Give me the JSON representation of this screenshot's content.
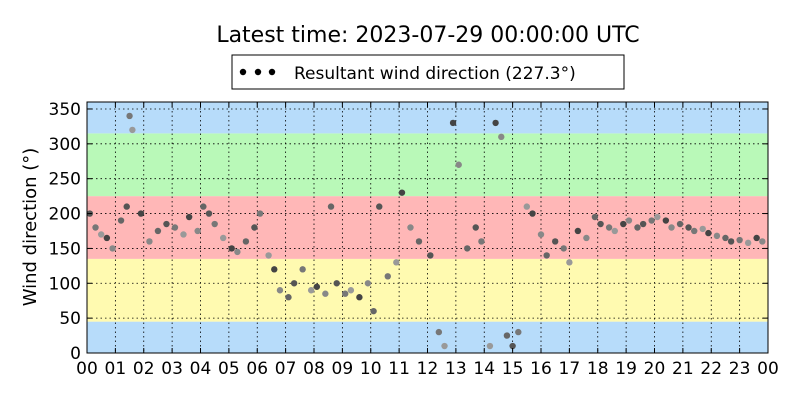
{
  "chart_data": {
    "type": "scatter",
    "title": "Latest time: 2023-07-29 00:00:00 UTC",
    "xlabel": "",
    "ylabel": "Wind direction (°)",
    "xlim": [
      0,
      24
    ],
    "ylim": [
      0,
      360
    ],
    "x_tick_labels": [
      "00",
      "01",
      "02",
      "03",
      "04",
      "05",
      "06",
      "07",
      "08",
      "09",
      "10",
      "11",
      "12",
      "13",
      "14",
      "15",
      "16",
      "17",
      "18",
      "19",
      "20",
      "21",
      "22",
      "23",
      "00"
    ],
    "y_ticks": [
      0,
      50,
      100,
      150,
      200,
      250,
      300,
      350
    ],
    "grid": true,
    "legend": {
      "placement": "top-center",
      "entries": [
        "Resultant wind direction (227.3°)"
      ]
    },
    "background_bands": [
      {
        "from": 0,
        "to": 45,
        "color": "#b7dcfa"
      },
      {
        "from": 45,
        "to": 135,
        "color": "#fffab0"
      },
      {
        "from": 135,
        "to": 225,
        "color": "#ffb7b7"
      },
      {
        "from": 225,
        "to": 315,
        "color": "#b9f9b8"
      },
      {
        "from": 315,
        "to": 360,
        "color": "#b7dcfa"
      }
    ],
    "series": [
      {
        "marker_color": "#000000",
        "points": [
          [
            0.1,
            200
          ],
          [
            0.3,
            180
          ],
          [
            0.5,
            170
          ],
          [
            0.7,
            165
          ],
          [
            0.9,
            150
          ],
          [
            1.2,
            190
          ],
          [
            1.4,
            210
          ],
          [
            1.5,
            340
          ],
          [
            1.6,
            320
          ],
          [
            1.9,
            200
          ],
          [
            2.2,
            160
          ],
          [
            2.5,
            175
          ],
          [
            2.8,
            185
          ],
          [
            3.1,
            180
          ],
          [
            3.4,
            170
          ],
          [
            3.6,
            195
          ],
          [
            3.9,
            175
          ],
          [
            4.1,
            210
          ],
          [
            4.3,
            200
          ],
          [
            4.5,
            185
          ],
          [
            4.8,
            165
          ],
          [
            5.1,
            150
          ],
          [
            5.3,
            145
          ],
          [
            5.6,
            160
          ],
          [
            5.9,
            180
          ],
          [
            6.1,
            200
          ],
          [
            6.4,
            140
          ],
          [
            6.6,
            120
          ],
          [
            6.8,
            90
          ],
          [
            7.1,
            80
          ],
          [
            7.3,
            100
          ],
          [
            7.6,
            120
          ],
          [
            7.9,
            90
          ],
          [
            8.1,
            95
          ],
          [
            8.4,
            85
          ],
          [
            8.6,
            210
          ],
          [
            8.8,
            100
          ],
          [
            9.1,
            85
          ],
          [
            9.3,
            90
          ],
          [
            9.6,
            80
          ],
          [
            9.9,
            100
          ],
          [
            10.1,
            60
          ],
          [
            10.3,
            210
          ],
          [
            10.6,
            110
          ],
          [
            10.9,
            130
          ],
          [
            11.1,
            230
          ],
          [
            11.4,
            180
          ],
          [
            11.7,
            160
          ],
          [
            12.1,
            140
          ],
          [
            12.4,
            30
          ],
          [
            12.6,
            10
          ],
          [
            12.9,
            330
          ],
          [
            13.1,
            270
          ],
          [
            13.4,
            150
          ],
          [
            13.7,
            180
          ],
          [
            13.9,
            160
          ],
          [
            14.2,
            10
          ],
          [
            14.4,
            330
          ],
          [
            14.6,
            310
          ],
          [
            14.8,
            25
          ],
          [
            15.0,
            10
          ],
          [
            15.2,
            30
          ],
          [
            15.5,
            210
          ],
          [
            15.7,
            200
          ],
          [
            16.0,
            170
          ],
          [
            16.2,
            140
          ],
          [
            16.5,
            160
          ],
          [
            16.8,
            150
          ],
          [
            17.0,
            130
          ],
          [
            17.3,
            175
          ],
          [
            17.6,
            165
          ],
          [
            17.9,
            195
          ],
          [
            18.1,
            185
          ],
          [
            18.4,
            180
          ],
          [
            18.6,
            175
          ],
          [
            18.9,
            185
          ],
          [
            19.1,
            190
          ],
          [
            19.4,
            180
          ],
          [
            19.6,
            185
          ],
          [
            19.9,
            190
          ],
          [
            20.1,
            195
          ],
          [
            20.4,
            190
          ],
          [
            20.6,
            180
          ],
          [
            20.9,
            185
          ],
          [
            21.2,
            180
          ],
          [
            21.4,
            175
          ],
          [
            21.7,
            178
          ],
          [
            21.9,
            172
          ],
          [
            22.2,
            168
          ],
          [
            22.5,
            165
          ],
          [
            22.7,
            160
          ],
          [
            23.0,
            162
          ],
          [
            23.3,
            158
          ],
          [
            23.6,
            165
          ],
          [
            23.8,
            160
          ]
        ]
      }
    ]
  }
}
